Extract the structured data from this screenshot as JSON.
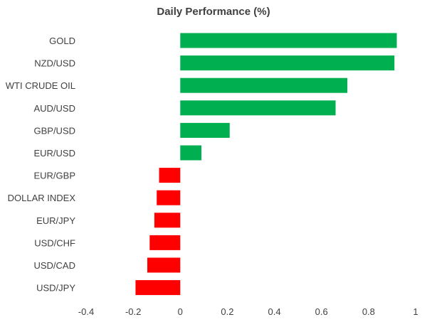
{
  "chart_data": {
    "type": "bar",
    "orientation": "horizontal",
    "title": "Daily Performance (%)",
    "xlabel": "",
    "ylabel": "",
    "categories": [
      "GOLD",
      "NZD/USD",
      "WTI CRUDE OIL",
      "AUD/USD",
      "GBP/USD",
      "EUR/USD",
      "EUR/GBP",
      "DOLLAR INDEX",
      "EUR/JPY",
      "USD/CHF",
      "USD/CAD",
      "USD/JPY"
    ],
    "values": [
      0.92,
      0.91,
      0.71,
      0.66,
      0.21,
      0.09,
      -0.09,
      -0.1,
      -0.11,
      -0.13,
      -0.14,
      -0.19
    ],
    "xlim": [
      -0.4,
      1
    ],
    "xticks": [
      -0.4,
      -0.2,
      0,
      0.2,
      0.4,
      0.6,
      0.8,
      1
    ],
    "xtick_labels": [
      "-0.4",
      "-0.2",
      "0",
      "0.2",
      "0.4",
      "0.6",
      "0.8",
      "1"
    ],
    "positive_color": "#00b050",
    "negative_color": "#ff0000",
    "grid": false,
    "legend": "none"
  }
}
